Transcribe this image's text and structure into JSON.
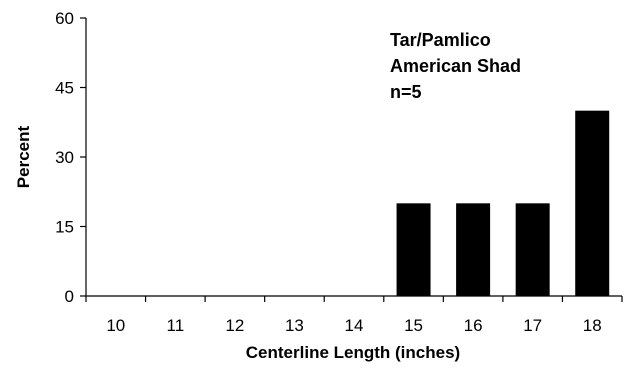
{
  "chart_data": {
    "type": "bar",
    "categories": [
      "10",
      "11",
      "12",
      "13",
      "14",
      "15",
      "16",
      "17",
      "18"
    ],
    "values": [
      0,
      0,
      0,
      0,
      0,
      20,
      20,
      20,
      40
    ],
    "xlabel": "Centerline Length (inches)",
    "ylabel": "Percent",
    "ylim": [
      0,
      60
    ],
    "yticks": [
      0,
      15,
      30,
      45,
      60
    ],
    "annotations": [
      "Tar/Pamlico",
      "American Shad",
      "n=5"
    ],
    "bar_color": "#000000",
    "grid": false,
    "legend": "none"
  }
}
